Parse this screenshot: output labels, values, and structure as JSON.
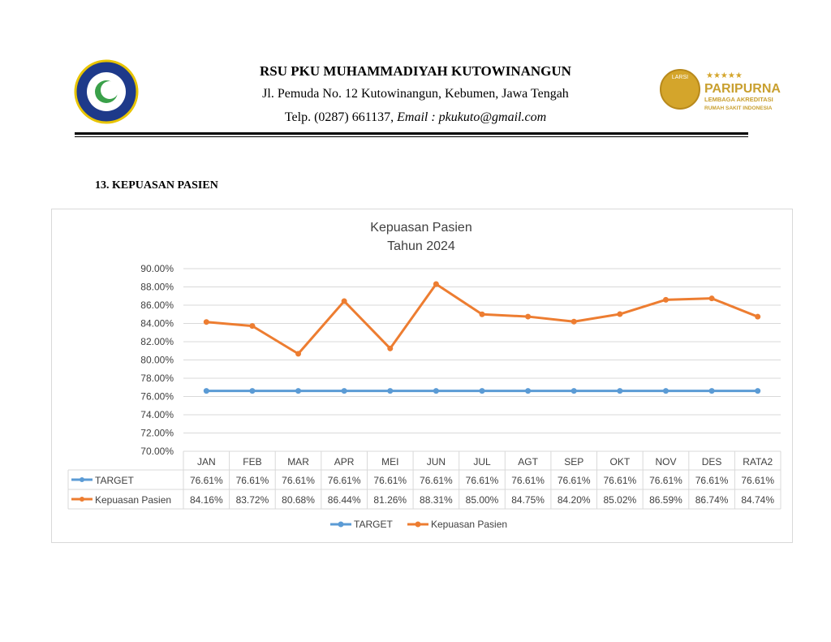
{
  "header": {
    "name": "RSU PKU MUHAMMADIYAH KUTOWINANGUN",
    "address": "Jl. Pemuda No. 12 Kutowinangun, Kebumen, Jawa Tengah",
    "phone": "Telp. (0287) 661137, ",
    "email": "Email : pkukuto@gmail.com"
  },
  "logo_right": {
    "badge": "LARSI",
    "title": "PARIPURNA",
    "line1": "LEMBAGA AKREDITASI",
    "line2": "RUMAH SAKIT INDONESIA"
  },
  "section_title": "13. KEPUASAN PASIEN",
  "chart_data": {
    "type": "line",
    "title": "Kepuasan Pasien",
    "subtitle": "Tahun 2024",
    "categories": [
      "JAN",
      "FEB",
      "MAR",
      "APR",
      "MEI",
      "JUN",
      "JUL",
      "AGT",
      "SEP",
      "OKT",
      "NOV",
      "DES",
      "RATA2"
    ],
    "ylim": [
      70,
      90
    ],
    "yticks": [
      "70.00%",
      "72.00%",
      "74.00%",
      "76.00%",
      "78.00%",
      "80.00%",
      "82.00%",
      "84.00%",
      "86.00%",
      "88.00%",
      "90.00%"
    ],
    "grid": true,
    "legend": "bottom",
    "series": [
      {
        "name": "TARGET",
        "color": "#5b9bd5",
        "values": [
          76.61,
          76.61,
          76.61,
          76.61,
          76.61,
          76.61,
          76.61,
          76.61,
          76.61,
          76.61,
          76.61,
          76.61,
          76.61
        ],
        "labels": [
          "76.61%",
          "76.61%",
          "76.61%",
          "76.61%",
          "76.61%",
          "76.61%",
          "76.61%",
          "76.61%",
          "76.61%",
          "76.61%",
          "76.61%",
          "76.61%",
          "76.61%"
        ]
      },
      {
        "name": "Kepuasan Pasien",
        "color": "#ed7d31",
        "values": [
          84.16,
          83.72,
          80.68,
          86.44,
          81.26,
          88.31,
          85.0,
          84.75,
          84.2,
          85.02,
          86.59,
          86.74,
          84.74
        ],
        "labels": [
          "84.16%",
          "83.72%",
          "80.68%",
          "86.44%",
          "81.26%",
          "88.31%",
          "85.00%",
          "84.75%",
          "84.20%",
          "85.02%",
          "86.59%",
          "86.74%",
          "84.74%"
        ]
      }
    ]
  }
}
